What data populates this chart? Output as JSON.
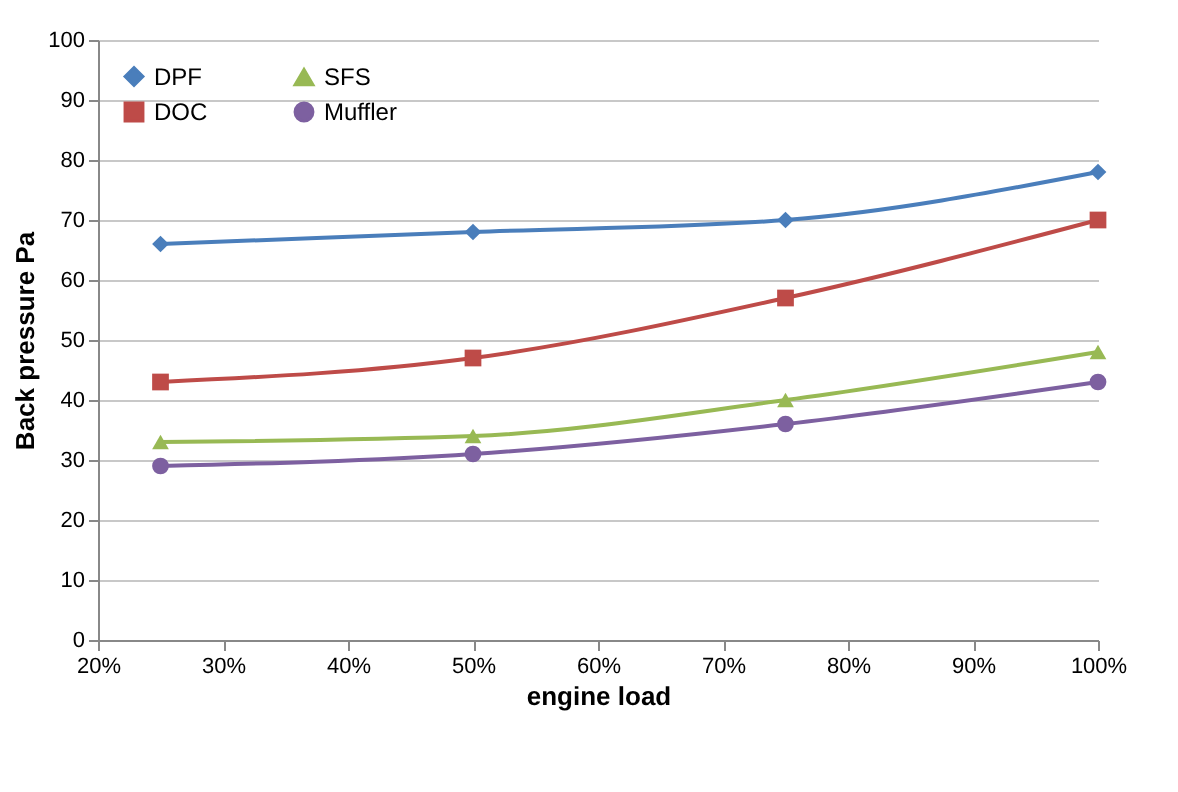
{
  "chart_data": {
    "type": "line",
    "xlabel": "engine load",
    "ylabel": "Back pressure Pa",
    "x": [
      25,
      50,
      75,
      100
    ],
    "series": [
      {
        "name": "DPF",
        "color": "#4a7ebb",
        "marker": "diamond",
        "values": [
          66,
          68,
          70,
          78
        ]
      },
      {
        "name": "DOC",
        "color": "#be4b48",
        "marker": "square",
        "values": [
          43,
          47,
          57,
          70
        ]
      },
      {
        "name": "SFS",
        "color": "#98b954",
        "marker": "triangle",
        "values": [
          33,
          34,
          40,
          48
        ]
      },
      {
        "name": "Muffler",
        "color": "#7d60a0",
        "marker": "circle",
        "values": [
          29,
          31,
          36,
          43
        ]
      }
    ],
    "xlim": [
      20,
      100
    ],
    "xticks": [
      {
        "value": 20,
        "label": "20%"
      },
      {
        "value": 30,
        "label": "30%"
      },
      {
        "value": 40,
        "label": "40%"
      },
      {
        "value": 50,
        "label": "50%"
      },
      {
        "value": 60,
        "label": "60%"
      },
      {
        "value": 70,
        "label": "70%"
      },
      {
        "value": 80,
        "label": "80%"
      },
      {
        "value": 90,
        "label": "90%"
      },
      {
        "value": 100,
        "label": "100%"
      }
    ],
    "ylim": [
      0,
      100
    ],
    "yticks": [
      0,
      10,
      20,
      30,
      40,
      50,
      60,
      70,
      80,
      90,
      100
    ],
    "grid": "y",
    "legend": "top left",
    "line_style": "solid"
  }
}
